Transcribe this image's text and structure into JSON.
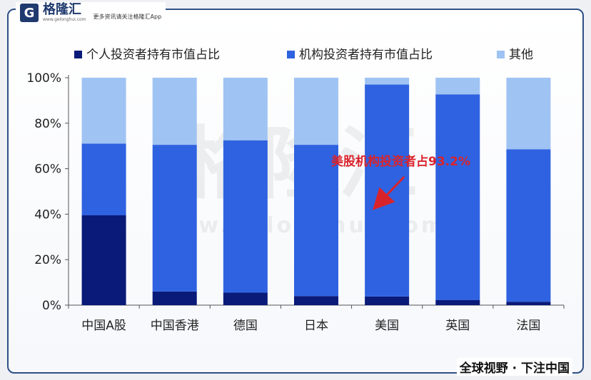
{
  "branding": {
    "logo_glyph": "G",
    "logo_name": "格隆汇",
    "logo_url": "www.gelonghui.com",
    "slogan": "更多资讯请关注格隆汇App",
    "footer": "全球视野 · 下注中国",
    "watermark_name": "格隆汇",
    "watermark_url": "www.gelonghui.com"
  },
  "chart_data": {
    "type": "bar",
    "stacked": true,
    "categories": [
      "中国A股",
      "中国香港",
      "德国",
      "日本",
      "美国",
      "英国",
      "法国"
    ],
    "series": [
      {
        "name": "个人投资者持有市值占比",
        "color": "#0a1a78",
        "values": [
          39.5,
          6,
          5.5,
          4,
          3.8,
          2.2,
          1.5
        ]
      },
      {
        "name": "机构投资者持有市值占比",
        "color": "#2f62e0",
        "values": [
          31.5,
          64.5,
          67,
          66.5,
          93.2,
          90.5,
          67
        ]
      },
      {
        "name": "其他",
        "color": "#9fc3f3",
        "values": [
          29,
          29.5,
          27.5,
          29.5,
          3,
          7.3,
          31.5
        ]
      }
    ],
    "yticks": [
      "0%",
      "20%",
      "40%",
      "60%",
      "80%",
      "100%"
    ],
    "ylim": [
      0,
      100
    ],
    "legend_position": "top",
    "annotation": {
      "text": "美股机构投资者占93.2%",
      "color": "#d9232b",
      "target_category": "美国"
    }
  }
}
